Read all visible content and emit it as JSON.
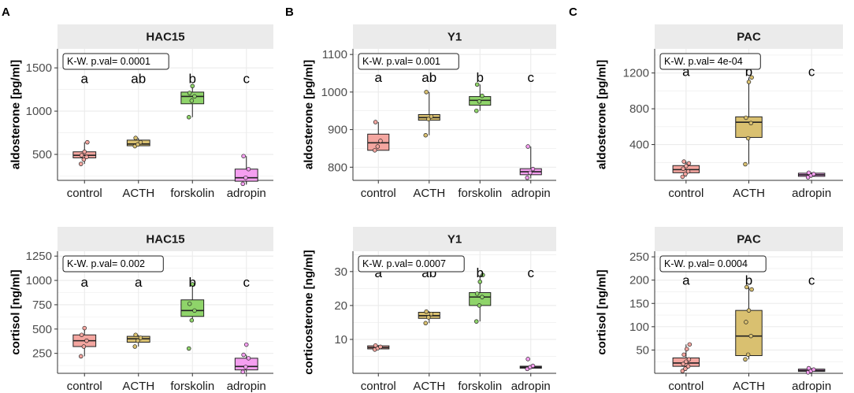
{
  "panel_labels": [
    "A",
    "B",
    "C"
  ],
  "chart_data": [
    {
      "type": "box",
      "panel": "A",
      "facet": "HAC15",
      "ylabel": "aldosterone [pg/ml]",
      "ylim": [
        200,
        1720
      ],
      "yticks": [
        500,
        1000,
        1500
      ],
      "categories": [
        "control",
        "ACTH",
        "forskolin",
        "adropin"
      ],
      "boxes": [
        {
          "q1": 460,
          "median": 490,
          "q3": 530,
          "lo": 390,
          "hi": 640,
          "points": [
            390,
            440,
            470,
            490,
            530,
            640
          ]
        },
        {
          "q1": 600,
          "median": 620,
          "q3": 665,
          "lo": 590,
          "hi": 690,
          "points": [
            595,
            615,
            640,
            690
          ]
        },
        {
          "q1": 1085,
          "median": 1170,
          "q3": 1220,
          "lo": 930,
          "hi": 1290,
          "points": [
            930,
            1120,
            1170,
            1210,
            1290
          ]
        },
        {
          "q1": 190,
          "median": 230,
          "q3": 330,
          "lo": 150,
          "hi": 480,
          "points": [
            160,
            230,
            330,
            480
          ]
        }
      ],
      "test_label": "K-W. p.val= 0.0001",
      "sig_letters": [
        "a",
        "ab",
        "b",
        "c"
      ],
      "sig_level": 1380
    },
    {
      "type": "box",
      "panel": "B",
      "facet": "Y1",
      "ylabel": "aldosterone [pg/ml]",
      "ylim": [
        765,
        1115
      ],
      "yticks": [
        800,
        900,
        1000,
        1100
      ],
      "categories": [
        "control",
        "ACTH",
        "forskolin",
        "adropin"
      ],
      "boxes": [
        {
          "q1": 845,
          "median": 865,
          "q3": 888,
          "lo": 845,
          "hi": 920,
          "points": [
            845,
            855,
            870,
            920
          ]
        },
        {
          "q1": 925,
          "median": 932,
          "q3": 940,
          "lo": 885,
          "hi": 1000,
          "points": [
            885,
            928,
            935,
            1000
          ]
        },
        {
          "q1": 965,
          "median": 978,
          "q3": 988,
          "lo": 950,
          "hi": 1020,
          "points": [
            950,
            975,
            990,
            1020
          ]
        },
        {
          "q1": 780,
          "median": 788,
          "q3": 796,
          "lo": 770,
          "hi": 855,
          "points": [
            772,
            785,
            795,
            855
          ]
        }
      ],
      "test_label": "K-W. p.val= 0.001",
      "sig_letters": [
        "a",
        "ab",
        "b",
        "c"
      ],
      "sig_level": 1040
    },
    {
      "type": "box",
      "panel": "C",
      "facet": "PAC",
      "ylabel": "aldosterone [pg/ml]",
      "ylim": [
        0,
        1470
      ],
      "yticks": [
        400,
        800,
        1200
      ],
      "categories": [
        "control",
        "ACTH",
        "adropin"
      ],
      "boxes": [
        {
          "q1": 85,
          "median": 120,
          "q3": 165,
          "lo": 40,
          "hi": 210,
          "points": [
            40,
            70,
            100,
            130,
            160,
            190,
            210
          ]
        },
        {
          "q1": 480,
          "median": 650,
          "q3": 710,
          "lo": 180,
          "hi": 1150,
          "points": [
            180,
            470,
            640,
            700,
            1100,
            1150
          ]
        },
        {
          "q1": 45,
          "median": 62,
          "q3": 80,
          "lo": 30,
          "hi": 90,
          "points": [
            35,
            55,
            70,
            85
          ]
        }
      ],
      "test_label": "K-W. p.val= 4e-04",
      "sig_letters": [
        "a",
        "b",
        "c"
      ],
      "sig_level": 1220
    },
    {
      "type": "box",
      "panel": "A",
      "facet": "HAC15",
      "ylabel": "cortisol [ng/ml]",
      "ylim": [
        45,
        1300
      ],
      "yticks": [
        250,
        500,
        750,
        1000,
        1250
      ],
      "categories": [
        "control",
        "ACTH",
        "forskolin",
        "adropin"
      ],
      "boxes": [
        {
          "q1": 320,
          "median": 380,
          "q3": 440,
          "lo": 220,
          "hi": 510,
          "points": [
            220,
            320,
            380,
            440,
            510
          ]
        },
        {
          "q1": 365,
          "median": 400,
          "q3": 425,
          "lo": 320,
          "hi": 440,
          "points": [
            320,
            380,
            410,
            440
          ]
        },
        {
          "q1": 630,
          "median": 690,
          "q3": 800,
          "lo": 590,
          "hi": 960,
          "points": [
            300,
            590,
            690,
            760,
            960
          ]
        },
        {
          "q1": 80,
          "median": 115,
          "q3": 200,
          "lo": 55,
          "hi": 235,
          "points": [
            60,
            110,
            200,
            235,
            340
          ]
        }
      ],
      "test_label": "K-W. p.val= 0.002",
      "sig_letters": [
        "a",
        "a",
        "b",
        "c"
      ],
      "sig_level": 985
    },
    {
      "type": "box",
      "panel": "B",
      "facet": "Y1",
      "ylabel": "corticosterone [ng/ml]",
      "ylim": [
        0,
        36
      ],
      "yticks": [
        10,
        20,
        30
      ],
      "categories": [
        "control",
        "ACTH",
        "forskolin",
        "adropin"
      ],
      "boxes": [
        {
          "q1": 7.2,
          "median": 7.6,
          "q3": 8.1,
          "lo": 7.0,
          "hi": 8.3,
          "points": [
            7.0,
            7.4,
            7.8,
            8.2
          ]
        },
        {
          "q1": 16.2,
          "median": 17.0,
          "q3": 18.0,
          "lo": 14.8,
          "hi": 18.3,
          "points": [
            14.8,
            16.5,
            17.5,
            18.2
          ]
        },
        {
          "q1": 20.0,
          "median": 22.5,
          "q3": 23.8,
          "lo": 15.3,
          "hi": 29.0,
          "points": [
            15.3,
            20.0,
            22.5,
            23.5,
            27.0,
            29.0
          ]
        },
        {
          "q1": 1.5,
          "median": 1.8,
          "q3": 2.1,
          "lo": 1.3,
          "hi": 2.3,
          "points": [
            1.3,
            1.8,
            2.2,
            4.2
          ]
        }
      ],
      "test_label": "K-W. p.val= 0.0007",
      "sig_letters": [
        "a",
        "ab",
        "b",
        "c"
      ],
      "sig_level": 29.7
    },
    {
      "type": "box",
      "panel": "C",
      "facet": "PAC",
      "ylabel": "cortisol [ng/ml]",
      "ylim": [
        0,
        262
      ],
      "yticks": [
        50,
        100,
        150,
        200,
        250
      ],
      "categories": [
        "control",
        "ACTH",
        "adropin"
      ],
      "boxes": [
        {
          "q1": 15,
          "median": 22,
          "q3": 33,
          "lo": 5,
          "hi": 62,
          "points": [
            5,
            10,
            15,
            20,
            25,
            30,
            40,
            52,
            62
          ]
        },
        {
          "q1": 38,
          "median": 80,
          "q3": 135,
          "lo": 30,
          "hi": 185,
          "points": [
            30,
            40,
            80,
            110,
            135,
            180,
            185
          ]
        },
        {
          "q1": 4,
          "median": 6,
          "q3": 9,
          "lo": 2,
          "hi": 11,
          "points": [
            2,
            5,
            8,
            11
          ]
        }
      ],
      "test_label": "K-W. p.val= 0.0004",
      "sig_letters": [
        "a",
        "b",
        "c"
      ],
      "sig_level": 200
    }
  ],
  "colors": {
    "control": "#f4a6a0",
    "ACTH": "#d9c070",
    "forskolin": "#8fd46a",
    "adropin": "#f59ff0",
    "strip": "#ebebeb",
    "grid": "#ebebeb",
    "points": "#e0c060"
  }
}
